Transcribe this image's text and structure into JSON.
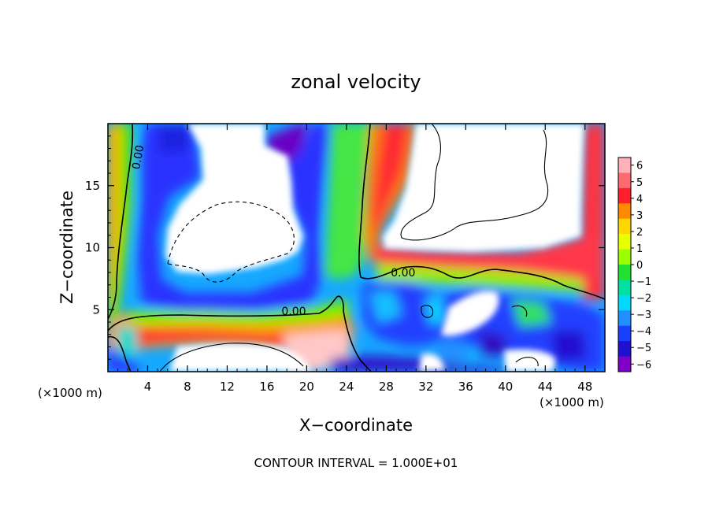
{
  "chart_data": {
    "type": "heatmap",
    "title": "zonal velocity",
    "xlabel": "X−coordinate",
    "ylabel": "Z−coordinate",
    "x_unit_label": "(×1000 m)",
    "x_range": [
      0,
      50
    ],
    "y_range": [
      0,
      20
    ],
    "x_ticks": [
      4,
      8,
      12,
      16,
      20,
      24,
      28,
      32,
      36,
      40,
      44,
      48
    ],
    "y_ticks": [
      5,
      10,
      15
    ],
    "colorbar": {
      "range": [
        -6,
        6
      ],
      "ticks": [
        "6",
        "5",
        "4",
        "3",
        "2",
        "1",
        "0",
        "−1",
        "−2",
        "−3",
        "−4",
        "−5",
        "−6"
      ],
      "colors": [
        "#ffb0b8",
        "#ff6a70",
        "#ff1e2a",
        "#ff8a00",
        "#ffd700",
        "#e8ff00",
        "#9cff00",
        "#20e030",
        "#00e0a0",
        "#00d8ff",
        "#2090ff",
        "#1840ff",
        "#2010d0",
        "#8000c8"
      ]
    },
    "contour_labels": [
      {
        "text": "0.00",
        "x": 3.0,
        "z": 17.3
      },
      {
        "text": "0.00",
        "x": 18.7,
        "z": 4.9
      },
      {
        "text": "0.00",
        "x": 29.7,
        "z": 8.0
      }
    ],
    "footnote": "CONTOUR INTERVAL = 1.000E+01"
  }
}
